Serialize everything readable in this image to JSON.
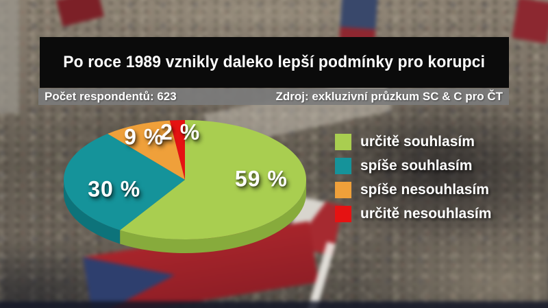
{
  "chart_data": {
    "type": "pie",
    "is_3d": true,
    "title": "Po roce 1989 vznikly daleko lepší podmínky pro korupci",
    "respondents_text": "Počet respondentů: 623",
    "source_text": "Zdroj: exkluzivní průzkum SC & C pro ČT",
    "unit": "%",
    "start_angle": "12-oclock-clockwise",
    "legend_position": "right",
    "slices": [
      {
        "label": "určitě souhlasím",
        "value": 59,
        "display": "59 %",
        "color": "#a9ce50",
        "side_color": "#87ab3c"
      },
      {
        "label": "spíše souhlasím",
        "value": 30,
        "display": "30 %",
        "color": "#15939a",
        "side_color": "#0d737a"
      },
      {
        "label": "spíše nesouhlasím",
        "value": 9,
        "display": "9 %",
        "color": "#efa03a",
        "side_color": "#c07b20"
      },
      {
        "label": "určitě nesouhlasím",
        "value": 2,
        "display": "2 %",
        "color": "#e51212",
        "side_color": "#a30c0c"
      }
    ]
  }
}
